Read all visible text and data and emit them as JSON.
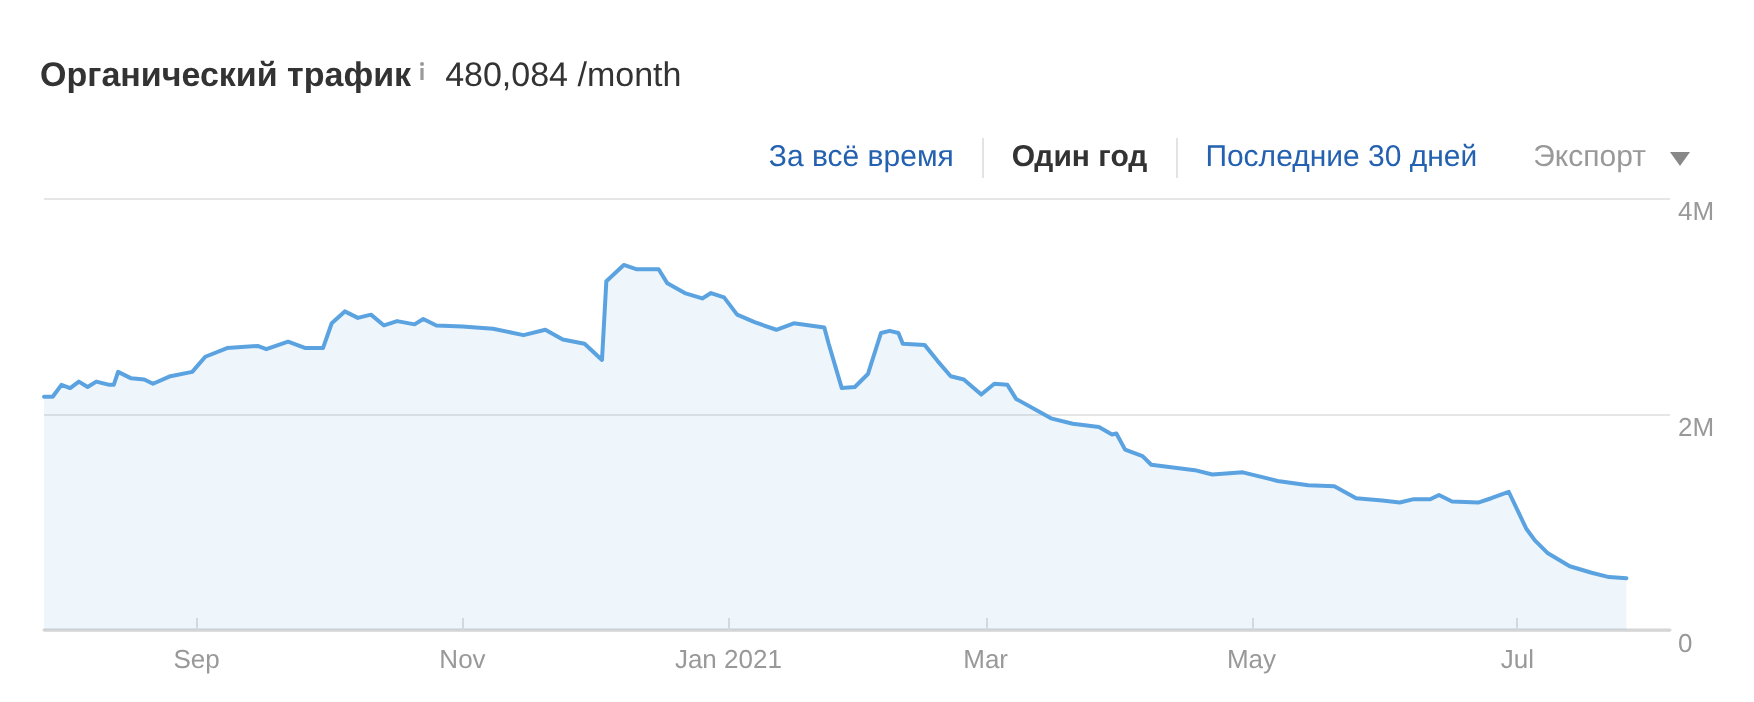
{
  "chart_data": {
    "type": "area",
    "title": "Органический трафик",
    "subtitle": "480,084 /month",
    "annotations": [
      "За всё время",
      "Один год",
      "Последние 30 дней",
      "Экспорт"
    ],
    "x": [
      "2020-07-28",
      "2020-07-30",
      "2020-08-01",
      "2020-08-03",
      "2020-08-05",
      "2020-08-07",
      "2020-08-09",
      "2020-08-12",
      "2020-08-13",
      "2020-08-14",
      "2020-08-17",
      "2020-08-20",
      "2020-08-22",
      "2020-08-26",
      "2020-08-31",
      "2020-09-03",
      "2020-09-08",
      "2020-09-15",
      "2020-09-17",
      "2020-09-22",
      "2020-09-26",
      "2020-09-30",
      "2020-10-02",
      "2020-10-05",
      "2020-10-08",
      "2020-10-11",
      "2020-10-14",
      "2020-10-17",
      "2020-10-21",
      "2020-10-23",
      "2020-10-26",
      "2020-11-01",
      "2020-11-08",
      "2020-11-15",
      "2020-11-20",
      "2020-11-24",
      "2020-11-29",
      "2020-12-03",
      "2020-12-04",
      "2020-12-08",
      "2020-12-11",
      "2020-12-16",
      "2020-12-18",
      "2020-12-22",
      "2020-12-26",
      "2020-12-28",
      "2020-12-31",
      "2021-01-03",
      "2021-01-07",
      "2021-01-12",
      "2021-01-16",
      "2021-01-23",
      "2021-01-24",
      "2021-01-27",
      "2021-01-30",
      "2021-02-02",
      "2021-02-05",
      "2021-02-07",
      "2021-02-09",
      "2021-02-10",
      "2021-02-15",
      "2021-02-18",
      "2021-02-21",
      "2021-02-24",
      "2021-02-28",
      "2021-03-03",
      "2021-03-06",
      "2021-03-08",
      "2021-03-16",
      "2021-03-21",
      "2021-03-27",
      "2021-03-30",
      "2021-03-31",
      "2021-04-02",
      "2021-04-06",
      "2021-04-08",
      "2021-04-18",
      "2021-04-22",
      "2021-04-29",
      "2021-05-07",
      "2021-05-14",
      "2021-05-20",
      "2021-05-25",
      "2021-05-31",
      "2021-06-04",
      "2021-06-07",
      "2021-06-11",
      "2021-06-13",
      "2021-06-16",
      "2021-06-22",
      "2021-06-25",
      "2021-06-29",
      "2021-07-03",
      "2021-07-05",
      "2021-07-08",
      "2021-07-13",
      "2021-07-18",
      "2021-07-22",
      "2021-07-26"
    ],
    "series": [
      {
        "color": "#5ba3e0",
        "values": [
          2160000,
          2160000,
          2270000,
          2240000,
          2300000,
          2250000,
          2300000,
          2270000,
          2270000,
          2390000,
          2330000,
          2320000,
          2280000,
          2350000,
          2390000,
          2530000,
          2610000,
          2630000,
          2600000,
          2670000,
          2610000,
          2610000,
          2840000,
          2950000,
          2890000,
          2920000,
          2820000,
          2860000,
          2830000,
          2880000,
          2820000,
          2810000,
          2790000,
          2730000,
          2780000,
          2690000,
          2650000,
          2500000,
          3230000,
          3380000,
          3340000,
          3340000,
          3210000,
          3120000,
          3070000,
          3120000,
          3080000,
          2920000,
          2850000,
          2780000,
          2840000,
          2800000,
          2650000,
          2240000,
          2250000,
          2370000,
          2750000,
          2770000,
          2750000,
          2650000,
          2640000,
          2490000,
          2350000,
          2320000,
          2180000,
          2280000,
          2270000,
          2140000,
          1960000,
          1910000,
          1880000,
          1810000,
          1820000,
          1670000,
          1610000,
          1530000,
          1480000,
          1440000,
          1460000,
          1380000,
          1340000,
          1330000,
          1220000,
          1200000,
          1180000,
          1210000,
          1210000,
          1250000,
          1190000,
          1180000,
          1220000,
          1280000,
          940000,
          830000,
          710000,
          590000,
          530000,
          490000,
          480000
        ]
      }
    ],
    "xlim": [
      "2020-07-28",
      "2021-08-05"
    ],
    "xticks": [
      {
        "value": "2020-09-01",
        "label": "Sep"
      },
      {
        "value": "2020-11-01",
        "label": "Nov"
      },
      {
        "value": "2021-01-01",
        "label": "Jan 2021"
      },
      {
        "value": "2021-03-01",
        "label": "Mar"
      },
      {
        "value": "2021-05-01",
        "label": "May"
      },
      {
        "value": "2021-07-01",
        "label": "Jul"
      }
    ],
    "ylim": [
      0,
      4000000
    ],
    "yticks": [
      0,
      {
        "value": 2000000,
        "label": "2M"
      },
      {
        "value": 4000000,
        "label": "4M"
      }
    ],
    "grid": "y",
    "marker": "none",
    "line_style": "solid"
  }
}
